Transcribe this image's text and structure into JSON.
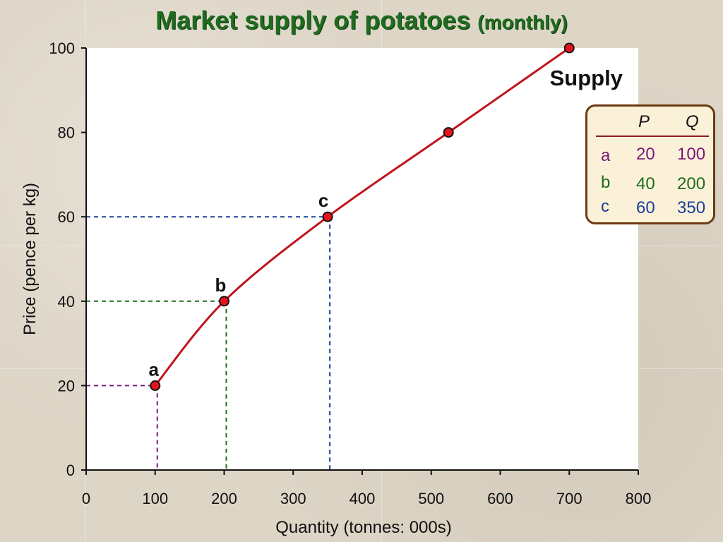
{
  "title": {
    "main": "Market supply of potatoes",
    "sub": "(monthly)"
  },
  "colors": {
    "title": "#1f6b1f",
    "supply_curve": "#c0141c",
    "point_fill": "#e8141c",
    "a": "#7a1a7a",
    "b": "#1f6b1f",
    "c": "#1a3f9a",
    "supply_label": "#a01428",
    "table_border": "#6b3b14",
    "table_bg": "#fbf1d8"
  },
  "table": {
    "headers": [
      "P",
      "Q"
    ],
    "rows": [
      {
        "label": "a",
        "P": "20",
        "Q": "100"
      },
      {
        "label": "b",
        "P": "40",
        "Q": "200"
      },
      {
        "label": "c",
        "P": "60",
        "Q": "350"
      }
    ]
  },
  "chart_data": {
    "type": "line",
    "xlabel": "Quantity (tonnes: 000s)",
    "ylabel": "Price (pence per kg)",
    "xlim": [
      0,
      800
    ],
    "ylim": [
      0,
      100
    ],
    "xticks": [
      0,
      100,
      200,
      300,
      400,
      500,
      600,
      700,
      800
    ],
    "yticks": [
      0,
      20,
      40,
      60,
      80,
      100
    ],
    "grid": false,
    "series": [
      {
        "name": "Supply",
        "points": [
          {
            "x": 100,
            "y": 20
          },
          {
            "x": 200,
            "y": 40
          },
          {
            "x": 350,
            "y": 60
          },
          {
            "x": 525,
            "y": 80
          },
          {
            "x": 700,
            "y": 100
          }
        ]
      }
    ],
    "annotations": [
      {
        "label": "a",
        "x": 100,
        "y": 20
      },
      {
        "label": "b",
        "x": 200,
        "y": 40
      },
      {
        "label": "c",
        "x": 350,
        "y": 60
      }
    ]
  }
}
